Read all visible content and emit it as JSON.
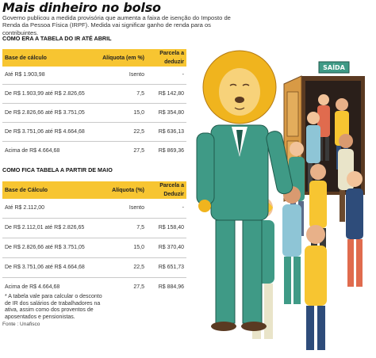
{
  "title": "Mais dinheiro no bolso",
  "subtitle": "Governo publicou a medida provisória que aumenta a faixa de isenção do Imposto de Renda da Pessoa Física (IRPF). Medida vai significar ganho de renda para os contribuintes.",
  "section1": {
    "heading": "COMO ERA A TABELA DO IR ATÉ ABRIL",
    "columns": [
      "Base de cálculo",
      "Alíquota (em %)",
      "Parcela a deduzir"
    ],
    "rows": [
      [
        "Até R$ 1.903,98",
        "Isento",
        "-"
      ],
      [
        "De R$ 1.903,99 até R$ 2.826,65",
        "7,5",
        "R$ 142,80"
      ],
      [
        "De R$ 2.826,66 até R$ 3.751,05",
        "15,0",
        "R$ 354,80"
      ],
      [
        "De R$ 3.751,06 até R$ 4.664,68",
        "22,5",
        "R$ 636,13"
      ],
      [
        "Acima de R$ 4.664,68",
        "27,5",
        "R$ 869,36"
      ]
    ]
  },
  "section2": {
    "heading": "COMO FICA TABELA A PARTIR DE MAIO",
    "columns": [
      "Base de Cálculo",
      "Alíquota (%)",
      "Parcela a Deduzir"
    ],
    "rows": [
      [
        "Até R$ 2.112,00",
        "Isento",
        "-"
      ],
      [
        "De R$ 2.112,01 até R$ 2.826,65",
        "7,5",
        "R$ 158,40"
      ],
      [
        "De R$ 2.826,66 até R$ 3.751,05",
        "15,0",
        "R$ 370,40"
      ],
      [
        "De R$ 3.751,06 até R$ 4.664,68",
        "22,5",
        "R$ 651,73"
      ],
      [
        "Acima de R$ 4.664,68",
        "27,5",
        "R$ 884,96"
      ]
    ]
  },
  "note": "* A tabela vale para calcular o desconto de IR dos salários de trabalhadores na ativa, assim como dos proventos de aposentados e pensionistas.",
  "source": "Fonte : Unafisco",
  "illustration": {
    "sign_text": "SAÍDA",
    "colors": {
      "accent_yellow": "#f7c531",
      "lion_mane": "#f0b41e",
      "suit_teal": "#3f9a86",
      "door_brown": "#c98a3a"
    }
  }
}
